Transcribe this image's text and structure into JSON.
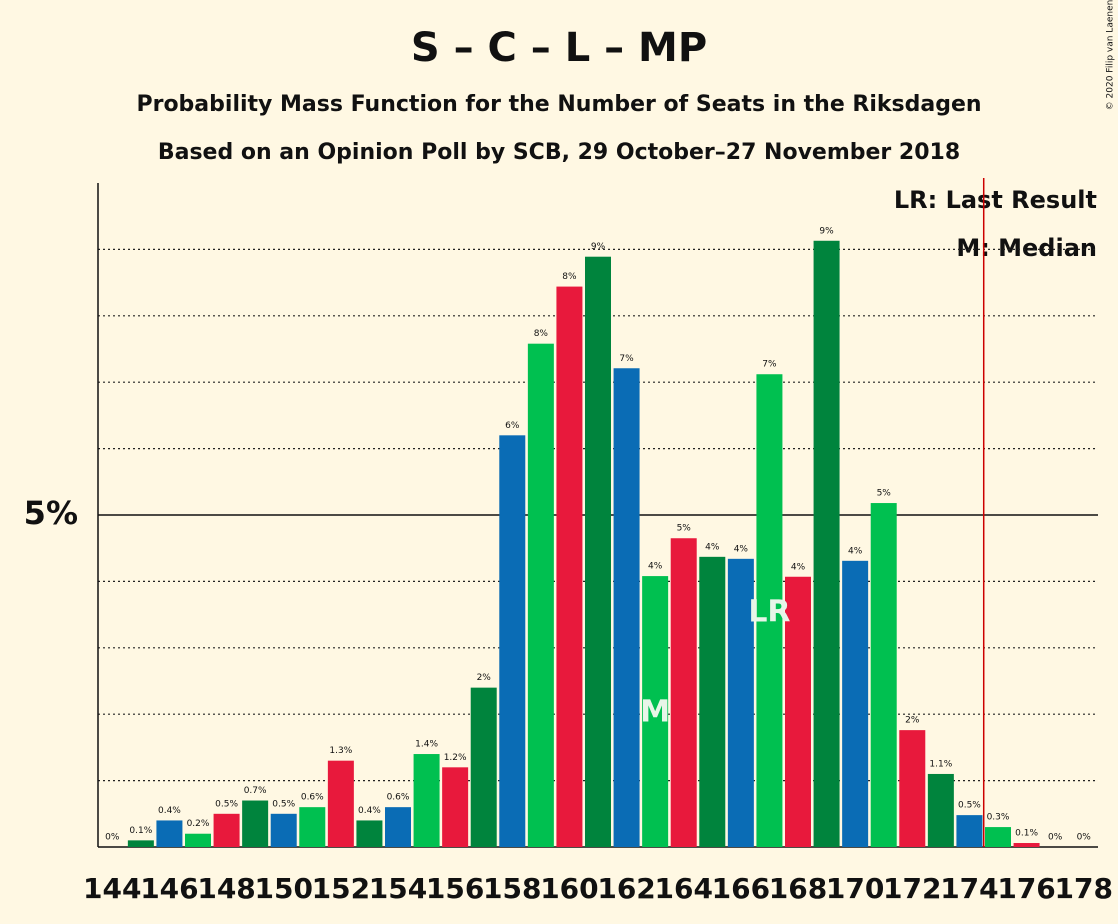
{
  "chart_data": {
    "type": "bar",
    "title": "S – C – L – MP",
    "subtitle": "Probability Mass Function for the Number of Seats in the Riksdagen",
    "subtitle2": "Based on an Opinion Poll by SCB, 29 October–27 November 2018",
    "copyright": "© 2020 Filip van Laenen",
    "categories": [
      144,
      null,
      146,
      null,
      148,
      null,
      150,
      null,
      152,
      null,
      154,
      null,
      156,
      null,
      158,
      null,
      160,
      null,
      162,
      null,
      164,
      null,
      166,
      null,
      168,
      null,
      170,
      null,
      172,
      null,
      174,
      null,
      176,
      null,
      178
    ],
    "values": [
      0,
      0.1,
      0.4,
      0.2,
      0.5,
      0.7,
      0.5,
      0.6,
      1.3,
      0.4,
      0.6,
      1.4,
      1.2,
      2.4,
      6.2,
      7.58,
      8.44,
      8.89,
      7.21,
      4.08,
      4.65,
      4.37,
      4.34,
      7.12,
      4.07,
      9.13,
      4.31,
      5.18,
      1.76,
      1.1,
      0.48,
      0.3,
      0.06,
      0,
      0
    ],
    "value_labels": [
      "0%",
      "0.1%",
      "0.4%",
      "0.2%",
      "0.5%",
      "0.7%",
      "0.5%",
      "0.6%",
      "1.3%",
      "0.4%",
      "0.6%",
      "1.4%",
      "1.2%",
      "2%",
      "6%",
      "8%",
      "8%",
      "9%",
      "7%",
      "4%",
      "5%",
      "4%",
      "4%",
      "7%",
      "4%",
      "9%",
      "4%",
      "5%",
      "2%",
      "1.1%",
      "0.5%",
      "0.3%",
      "0.1%",
      "0%",
      "0%"
    ],
    "colors": [
      "#e8193c",
      "#00843d",
      "#0a6cb5",
      "#00c050",
      "#e8193c",
      "#00843d",
      "#0a6cb5",
      "#00c050",
      "#e8193c",
      "#00843d",
      "#0a6cb5",
      "#00c050",
      "#e8193c",
      "#00843d",
      "#0a6cb5",
      "#00c050",
      "#e8193c",
      "#00843d",
      "#0a6cb5",
      "#00c050",
      "#e8193c",
      "#00843d",
      "#0a6cb5",
      "#00c050",
      "#e8193c",
      "#00843d",
      "#0a6cb5",
      "#00c050",
      "#e8193c",
      "#00843d",
      "#0a6cb5",
      "#00c050",
      "#e8193c",
      "#00843d",
      "#0a6cb5"
    ],
    "ylim": [
      0,
      10
    ],
    "yticks": [
      {
        "value": 5,
        "label": "5%"
      }
    ],
    "minor_yticks": [
      1,
      2,
      3,
      4,
      6,
      7,
      8,
      9
    ],
    "legend": [
      "LR: Last Result",
      "M: Median"
    ],
    "median_label": "M",
    "median_seat": 163,
    "last_result_label": "LR",
    "last_result_seat": 167,
    "majority_line": 174.5
  }
}
